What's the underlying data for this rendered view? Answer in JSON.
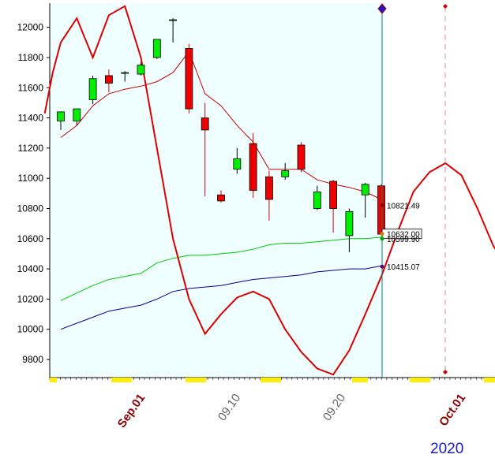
{
  "chart_data": {
    "type": "candlestick",
    "y_ticks": [
      9800,
      10000,
      10200,
      10400,
      10600,
      10800,
      11000,
      11200,
      11400,
      11600,
      11800,
      12000
    ],
    "ylim": [
      9680,
      12160
    ],
    "x_ticks": [
      "Sep.01",
      "09.10",
      "09.20",
      "Oct.01"
    ],
    "year_label": "2020",
    "candles": [
      {
        "open": 11380,
        "high": 11440,
        "low": 11320,
        "close": 11440
      },
      {
        "open": 11380,
        "high": 11460,
        "low": 11350,
        "close": 11460
      },
      {
        "open": 11520,
        "high": 11680,
        "low": 11490,
        "close": 11660
      },
      {
        "open": 11680,
        "high": 11720,
        "low": 11570,
        "close": 11630
      },
      {
        "open": 11700,
        "high": 11710,
        "low": 11640,
        "close": 11700
      },
      {
        "open": 11690,
        "high": 11770,
        "low": 11680,
        "close": 11750
      },
      {
        "open": 11800,
        "high": 11920,
        "low": 11790,
        "close": 11920
      },
      {
        "open": 12050,
        "high": 12060,
        "low": 11900,
        "close": 12050
      },
      {
        "open": 11860,
        "high": 11890,
        "low": 11430,
        "close": 11460
      },
      {
        "open": 11400,
        "high": 11500,
        "low": 10880,
        "close": 11320
      },
      {
        "open": 10890,
        "high": 10920,
        "low": 10840,
        "close": 10850
      },
      {
        "open": 11060,
        "high": 11200,
        "low": 11030,
        "close": 11130
      },
      {
        "open": 11230,
        "high": 11300,
        "low": 10870,
        "close": 10920
      },
      {
        "open": 11010,
        "high": 11050,
        "low": 10720,
        "close": 10860
      },
      {
        "open": 11010,
        "high": 11100,
        "low": 10990,
        "close": 11050
      },
      {
        "open": 11220,
        "high": 11240,
        "low": 11040,
        "close": 11060
      },
      {
        "open": 10800,
        "high": 10950,
        "low": 10790,
        "close": 10910
      },
      {
        "open": 10980,
        "high": 10990,
        "low": 10640,
        "close": 10800
      },
      {
        "open": 10620,
        "high": 10800,
        "low": 10510,
        "close": 10780
      },
      {
        "open": 10890,
        "high": 10970,
        "low": 10740,
        "close": 10960
      },
      {
        "open": 10950,
        "high": 10960,
        "low": 10630,
        "close": 10630
      }
    ],
    "series": [
      {
        "color": "#cc0000",
        "values": [
          11270,
          11350,
          11480,
          11560,
          11590,
          11610,
          11640,
          11700,
          11840,
          11560,
          11480,
          11350,
          11240,
          11060,
          11060,
          11060,
          10990,
          10960,
          10940,
          10910,
          10860
        ]
      },
      {
        "color": "#00cc00",
        "values": [
          10190,
          10240,
          10290,
          10330,
          10350,
          10370,
          10440,
          10470,
          10490,
          10490,
          10500,
          10510,
          10530,
          10560,
          10570,
          10570,
          10580,
          10590,
          10600,
          10600,
          10610
        ]
      },
      {
        "color": "#000099",
        "values": [
          10000,
          10040,
          10080,
          10120,
          10140,
          10160,
          10200,
          10250,
          10270,
          10280,
          10290,
          10310,
          10330,
          10340,
          10350,
          10360,
          10380,
          10390,
          10400,
          10400,
          10420
        ]
      },
      {
        "color": "#dd0000",
        "points": [
          [
            -1,
            11430
          ],
          [
            -0.5,
            11700
          ],
          [
            0,
            11900
          ],
          [
            1,
            12060
          ],
          [
            2,
            11800
          ],
          [
            3,
            12080
          ],
          [
            4,
            12140
          ],
          [
            5,
            11800
          ],
          [
            6,
            11200
          ],
          [
            7,
            10600
          ],
          [
            8,
            10200
          ],
          [
            9,
            9970
          ],
          [
            10,
            10100
          ],
          [
            11,
            10210
          ],
          [
            12,
            10250
          ],
          [
            13,
            10200
          ],
          [
            14,
            10000
          ],
          [
            15,
            9850
          ],
          [
            16,
            9740
          ],
          [
            17,
            9700
          ],
          [
            18,
            9860
          ],
          [
            19,
            10100
          ],
          [
            20,
            10350
          ],
          [
            21,
            10640
          ],
          [
            22,
            10910
          ],
          [
            23,
            11040
          ],
          [
            24,
            11100
          ],
          [
            25,
            11020
          ],
          [
            26,
            10800
          ],
          [
            27,
            10550
          ],
          [
            28,
            10400
          ]
        ]
      }
    ],
    "value_labels": [
      "10821.49",
      "10632.00",
      "10599.90",
      "10415.07"
    ],
    "colors": {
      "bull": "#00ee00",
      "bear": "#ee0000",
      "plot_bg": "#effefe",
      "cursor_line": "#008080",
      "date_axis": "#8b0000",
      "minor_date": "#666666"
    }
  }
}
